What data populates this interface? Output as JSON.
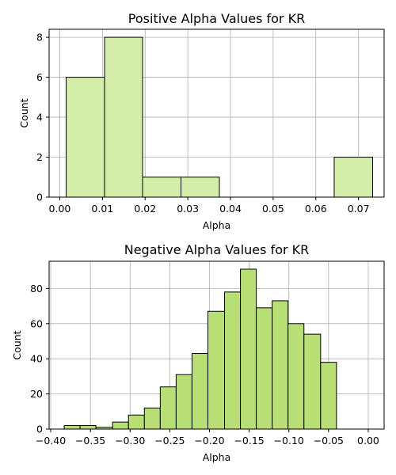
{
  "chart_data": [
    {
      "type": "histogram",
      "title": "Positive Alpha Values for KR",
      "xlabel": "Alpha",
      "ylabel": "Count",
      "xlim": [
        -0.0025,
        0.076
      ],
      "ylim": [
        0,
        8.4
      ],
      "xticks": [
        0.0,
        0.01,
        0.02,
        0.03,
        0.04,
        0.05,
        0.06,
        0.07
      ],
      "xtick_labels": [
        "0.00",
        "0.01",
        "0.02",
        "0.03",
        "0.04",
        "0.05",
        "0.06",
        "0.07"
      ],
      "yticks": [
        0,
        2,
        4,
        6,
        8
      ],
      "ytick_labels": [
        "0",
        "2",
        "4",
        "6",
        "8"
      ],
      "grid": true,
      "bar_color": "#d4eda8",
      "bins": [
        {
          "x0": 0.0015,
          "x1": 0.0105,
          "count": 6
        },
        {
          "x0": 0.0105,
          "x1": 0.0194,
          "count": 8
        },
        {
          "x0": 0.0194,
          "x1": 0.0284,
          "count": 1
        },
        {
          "x0": 0.0284,
          "x1": 0.0374,
          "count": 1
        },
        {
          "x0": 0.0374,
          "x1": 0.0463,
          "count": 0
        },
        {
          "x0": 0.0463,
          "x1": 0.0553,
          "count": 0
        },
        {
          "x0": 0.0553,
          "x1": 0.0643,
          "count": 0
        },
        {
          "x0": 0.0643,
          "x1": 0.0733,
          "count": 2
        }
      ]
    },
    {
      "type": "histogram",
      "title": "Negative Alpha Values for KR",
      "xlabel": "Alpha",
      "ylabel": "Count",
      "xlim": [
        -0.402,
        0.02
      ],
      "ylim": [
        0,
        95.5
      ],
      "xticks": [
        -0.4,
        -0.35,
        -0.3,
        -0.25,
        -0.2,
        -0.15,
        -0.1,
        -0.05,
        0.0
      ],
      "xtick_labels": [
        "−0.40",
        "−0.35",
        "−0.30",
        "−0.25",
        "−0.20",
        "−0.15",
        "−0.10",
        "−0.05",
        "0.00"
      ],
      "yticks": [
        0,
        20,
        40,
        60,
        80
      ],
      "ytick_labels": [
        "0",
        "20",
        "40",
        "60",
        "80"
      ],
      "grid": true,
      "bar_color": "#b8df73",
      "bins": [
        {
          "x0": -0.383,
          "x1": -0.363,
          "count": 2
        },
        {
          "x0": -0.363,
          "x1": -0.343,
          "count": 2
        },
        {
          "x0": -0.343,
          "x1": -0.322,
          "count": 1
        },
        {
          "x0": -0.322,
          "x1": -0.302,
          "count": 4
        },
        {
          "x0": -0.302,
          "x1": -0.282,
          "count": 8
        },
        {
          "x0": -0.282,
          "x1": -0.262,
          "count": 12
        },
        {
          "x0": -0.262,
          "x1": -0.242,
          "count": 24
        },
        {
          "x0": -0.242,
          "x1": -0.222,
          "count": 31
        },
        {
          "x0": -0.222,
          "x1": -0.202,
          "count": 43
        },
        {
          "x0": -0.202,
          "x1": -0.181,
          "count": 67
        },
        {
          "x0": -0.181,
          "x1": -0.161,
          "count": 78
        },
        {
          "x0": -0.161,
          "x1": -0.141,
          "count": 91
        },
        {
          "x0": -0.141,
          "x1": -0.121,
          "count": 69
        },
        {
          "x0": -0.121,
          "x1": -0.101,
          "count": 73
        },
        {
          "x0": -0.101,
          "x1": -0.081,
          "count": 60
        },
        {
          "x0": -0.081,
          "x1": -0.06,
          "count": 54
        },
        {
          "x0": -0.06,
          "x1": -0.04,
          "count": 38
        }
      ]
    }
  ]
}
